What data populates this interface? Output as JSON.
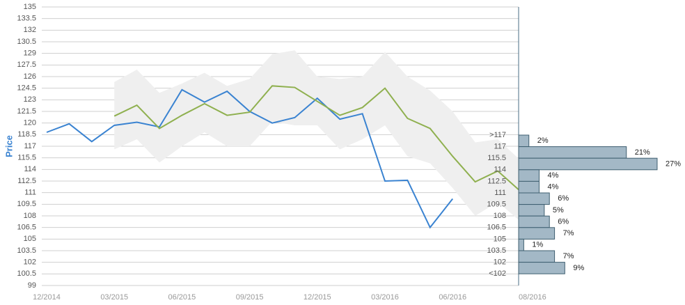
{
  "chart_data": {
    "type": "line",
    "ylabel": "Price",
    "ylim": [
      99,
      135
    ],
    "yticks": [
      99,
      100.5,
      102,
      103.5,
      105,
      106.5,
      108,
      109.5,
      111,
      112.5,
      114,
      115.5,
      117,
      118.5,
      120,
      121.5,
      123,
      124.5,
      126,
      127.5,
      129,
      130.5,
      132,
      133.5,
      135
    ],
    "grid": true,
    "categories": [
      "12/2014",
      null,
      null,
      "03/2015",
      null,
      null,
      "06/2015",
      null,
      null,
      "09/2015",
      null,
      null,
      "12/2015",
      null,
      null,
      "03/2016",
      null,
      null,
      "06/2016",
      null,
      null,
      "08/2016"
    ],
    "series": [
      {
        "color": "#3a83d1",
        "values": [
          118.8,
          119.9,
          117.6,
          119.7,
          120.1,
          119.5,
          124.3,
          122.7,
          124.1,
          121.5,
          120,
          120.7,
          123.2,
          120.5,
          121.2,
          112.5,
          112.6,
          106.5,
          110.2,
          null,
          null,
          null
        ]
      },
      {
        "color": "#8fb04f",
        "values": [
          null,
          null,
          null,
          120.9,
          122.3,
          119.3,
          121,
          122.5,
          121,
          121.4,
          124.8,
          124.6,
          122.8,
          121,
          122,
          124.5,
          120.6,
          119.3,
          115.7,
          112.4,
          113.8,
          111.2
        ]
      }
    ],
    "band": {
      "color": "#efefef",
      "upper": [
        null,
        null,
        null,
        125.3,
        126.9,
        123.9,
        125.1,
        126.5,
        124.8,
        125.7,
        128.9,
        129.4,
        126,
        125.7,
        126,
        129.2,
        126,
        124.2,
        121.5,
        117.5,
        117.9,
        115.2
      ],
      "lower": [
        null,
        null,
        null,
        116.6,
        117.9,
        114.9,
        117,
        118.8,
        117,
        117,
        120.2,
        119.7,
        119.7,
        116.6,
        117.9,
        119.7,
        115.7,
        114.8,
        111.6,
        108,
        109.8,
        107.3
      ]
    },
    "histogram": {
      "color": "#a3b8c6",
      "bin_labels": [
        ">117",
        "117",
        "115.5",
        "114",
        "112.5",
        "111",
        "109.5",
        "108",
        "106.5",
        "105",
        "103.5",
        "102",
        "<102"
      ],
      "values": [
        2,
        21,
        27,
        4,
        4,
        6,
        5,
        6,
        7,
        1,
        7,
        9
      ],
      "value_labels": [
        "2%",
        "21%",
        "27%",
        "4%",
        "4%",
        "6%",
        "5%",
        "6%",
        "7%",
        "1%",
        "7%",
        "9%"
      ]
    }
  }
}
